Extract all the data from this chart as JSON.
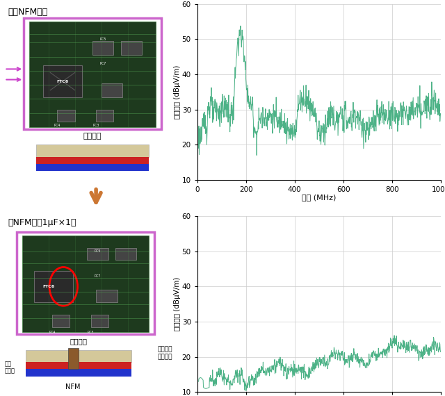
{
  "title_top": "没有NFM系列",
  "title_bottom": "有NFM系列1μF×1个",
  "ylabel": "噪声电平 (dBμV/m)",
  "xlabel": "频率 (MHz)",
  "xlim": [
    0,
    1000
  ],
  "ylim": [
    10,
    60
  ],
  "yticks": [
    10,
    20,
    30,
    40,
    50,
    60
  ],
  "xticks": [
    0,
    200,
    400,
    600,
    800,
    1000
  ],
  "line_color": "#3aaa7a",
  "grid_color": "#cccccc",
  "bg_color": "#ffffff",
  "fig_bg": "#ffffff",
  "arrow_color": "#cc7733",
  "label_micro": "微型电脑",
  "label_ground": "接地\n电源线",
  "label_internal": "内部叠层\n电源布局",
  "label_nfm": "NFM",
  "board_dark": "#1e3a1e",
  "board_edge": "#3a7a3a",
  "board_purple": "#cc66cc",
  "chip_dark": "#2a2a2a",
  "chip_edge": "#888888",
  "trace_green": "#55aa55",
  "pcb_beige": "#d4c89a",
  "pcb_red": "#cc2222",
  "pcb_blue": "#2233cc",
  "nfm_brown": "#8B5A2B",
  "pink_arrow": "#cc44cc"
}
